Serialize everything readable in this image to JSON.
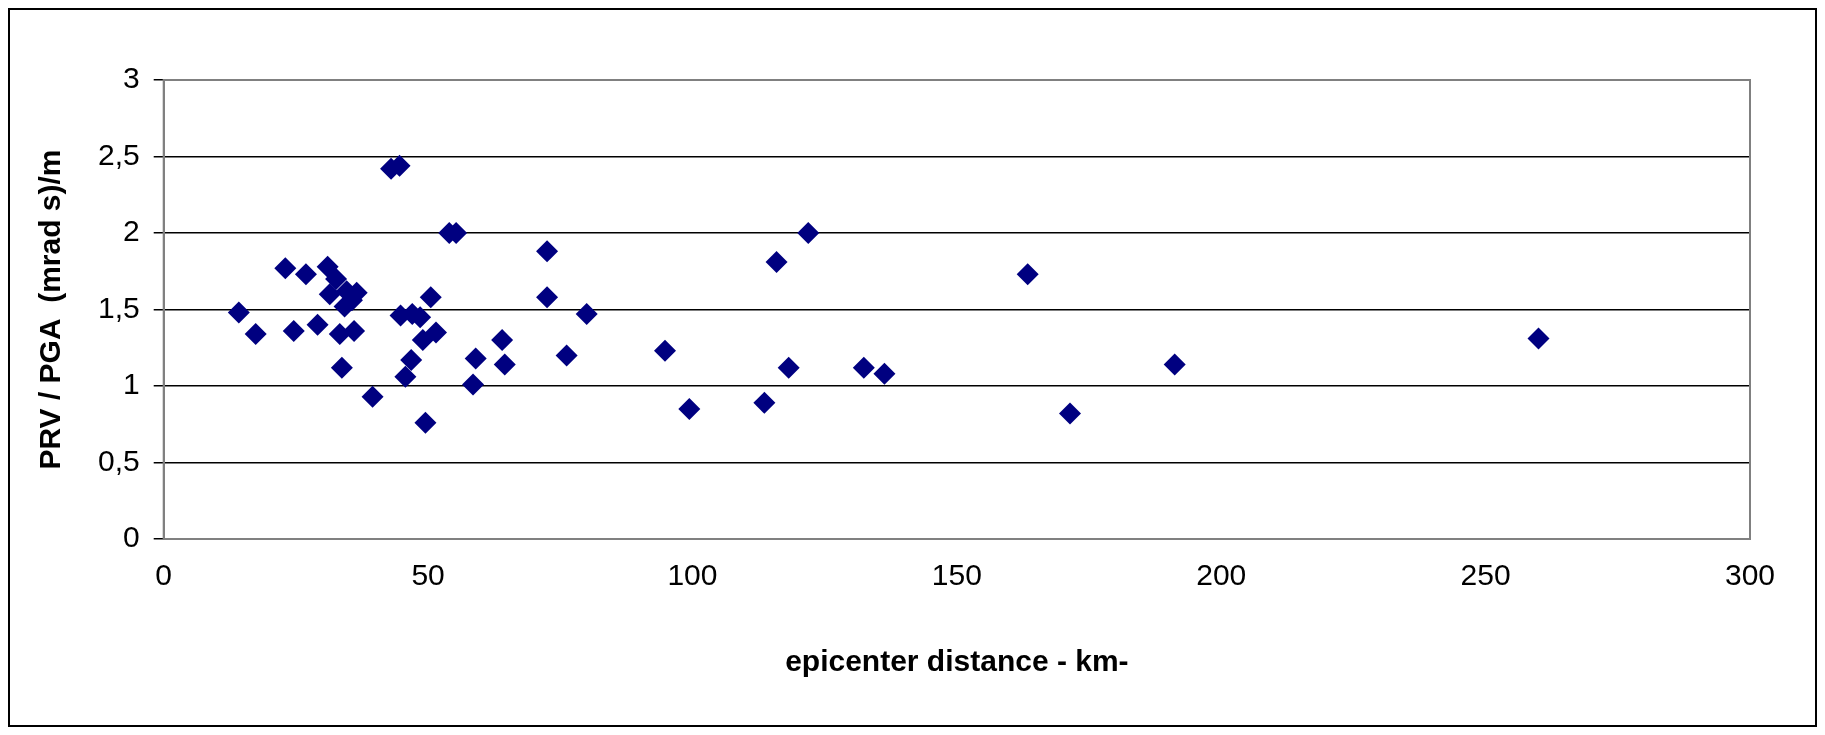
{
  "chart_data": {
    "type": "scatter",
    "xlabel": "epicenter distance - km-",
    "ylabel": "PRV / PGA  (mrad s)/m",
    "xlim": [
      0,
      300
    ],
    "xticks": [
      0,
      50,
      100,
      150,
      200,
      250,
      300
    ],
    "ylim": [
      0,
      3
    ],
    "yticks": [
      0,
      {
        "value": 0.5,
        "label": "0,5"
      },
      1,
      {
        "value": 1.5,
        "label": "1,5"
      },
      2,
      {
        "value": 2.5,
        "label": "2,5"
      },
      3
    ],
    "grid": "y",
    "marker": "diamond",
    "series": [
      {
        "color": "#000080",
        "x": [
          14.2,
          17.4,
          23,
          24.6,
          26.9,
          29.1,
          31,
          31.4,
          32.6,
          33.3,
          33.7,
          34.2,
          34.6,
          35.6,
          36,
          36.5,
          39.5,
          43.0,
          44.6,
          44.8,
          45.7,
          46.8,
          47,
          48.5,
          49,
          50.5,
          51.5,
          49.5,
          54,
          55.3,
          59,
          58.5,
          64,
          64.5,
          72.5,
          72.5,
          76.2,
          80,
          94.8,
          99.4,
          113.6,
          115.9,
          118.2,
          121.9,
          132.4,
          136.3,
          163.4,
          171.4,
          191.2,
          260
        ],
        "values": [
          1.48,
          1.34,
          1.77,
          1.36,
          1.73,
          1.4,
          1.78,
          1.6,
          1.7,
          1.34,
          1.12,
          1.52,
          1.62,
          1.56,
          1.36,
          1.61,
          0.93,
          2.42,
          2.44,
          1.46,
          1.06,
          1.17,
          1.47,
          1.45,
          1.3,
          1.58,
          1.35,
          0.76,
          2.0,
          2.0,
          1.18,
          1.01,
          1.3,
          1.14,
          1.88,
          1.58,
          1.2,
          1.47,
          1.23,
          0.85,
          0.89,
          1.81,
          1.12,
          2.0,
          1.12,
          1.08,
          1.73,
          0.82,
          1.14,
          1.31
        ]
      }
    ]
  }
}
